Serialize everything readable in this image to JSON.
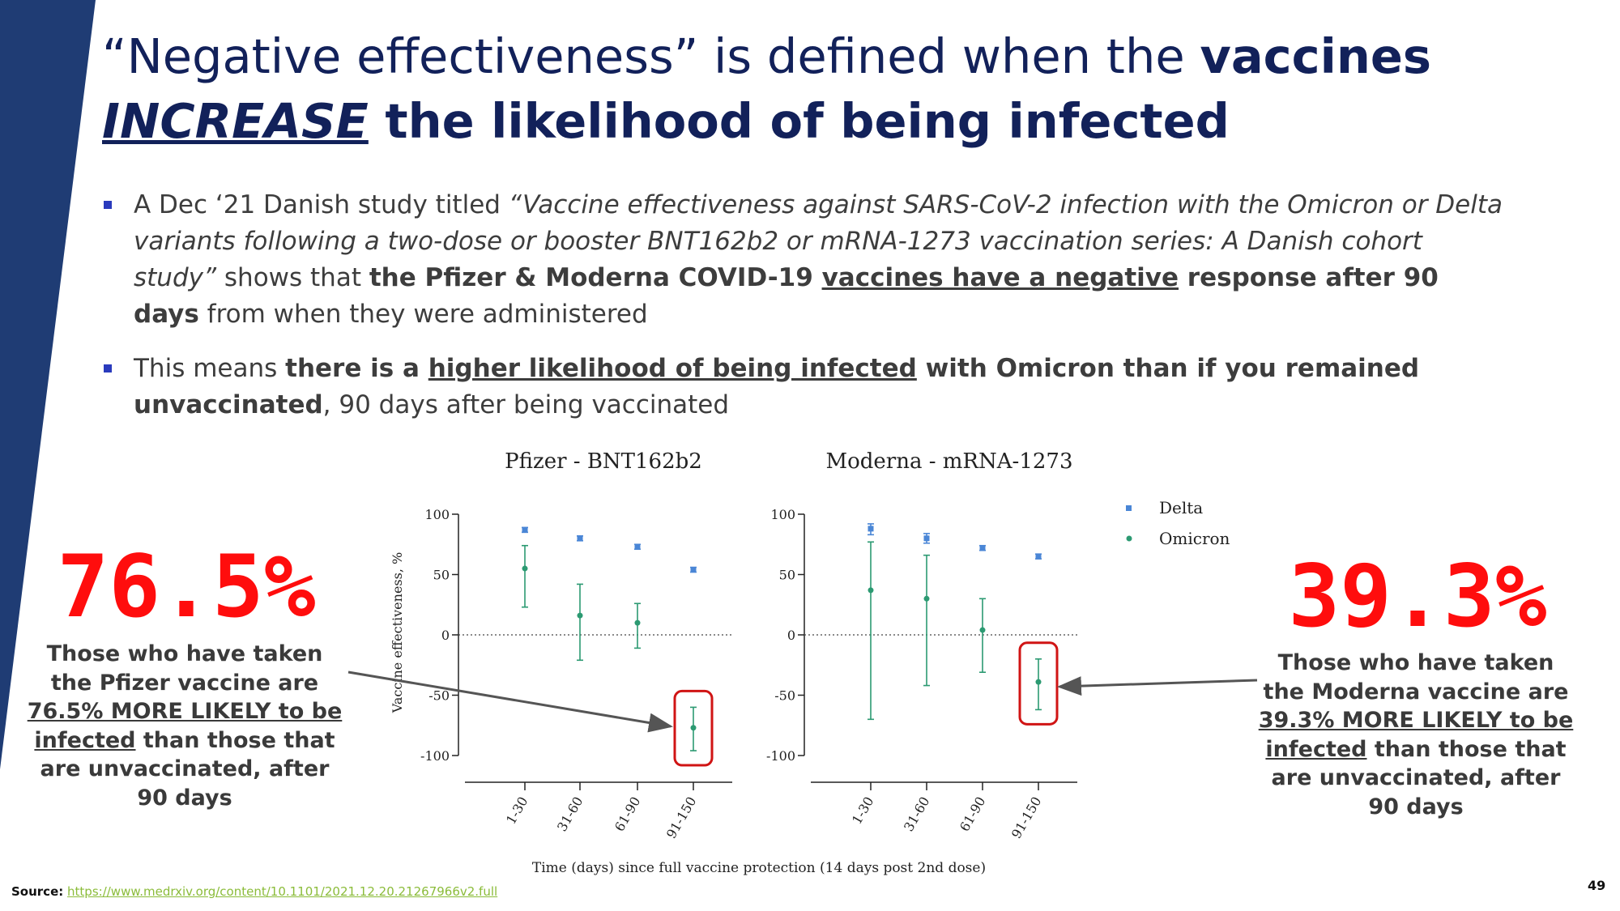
{
  "title": {
    "part1": "“Negative effectiveness” is defined when the ",
    "part1_bold": "vaccines",
    "part2_emph": "INCREASE",
    "part2_bold": " the likelihood of being infected"
  },
  "bullets": [
    {
      "t1": "A Dec ‘21 Danish study titled ",
      "t2_italic": "“Vaccine effectiveness against SARS-CoV-2 infection with the Omicron or Delta variants following a two-dose or booster BNT162b2 or mRNA-1273 vaccination series: A Danish cohort study”",
      "t3": " shows that ",
      "t4_bold": "the Pfizer & Moderna COVID-19 ",
      "t5_bold_underline": "vaccines have a negative",
      "t6_bold": " response after 90 days",
      "t7": " from when they were administered"
    },
    {
      "t1": "This means ",
      "t2_bold": "there is a ",
      "t3_bold_underline": "higher likelihood of being infected",
      "t4_bold": " with Omicron than if you remained unvaccinated",
      "t5": ", 90 days after being vaccinated"
    }
  ],
  "stat_left": {
    "value": "76.5%",
    "d1": "Those who have taken the Pfizer vaccine are ",
    "d2_underline": "76.5% MORE LIKELY to be infected",
    "d3": " than those that are unvaccinated, after 90 days"
  },
  "stat_right": {
    "value": "39.3%",
    "d1": "Those who have taken the Moderna vaccine are ",
    "d2_underline": "39.3% MORE LIKELY to be infected",
    "d3": " than those that are unvaccinated, after 90 days"
  },
  "source": {
    "label": "Source:",
    "url": "https://www.medrxiv.org/content/10.1101/2021.12.20.21267966v2.full"
  },
  "page_number": "49",
  "colors": {
    "title": "#12215a",
    "stripe": "#1f3c74",
    "accent_red": "#ff0d0d",
    "delta": "#4a86d6",
    "omicron": "#2c9a72",
    "bullet_marker": "#2a3bbd",
    "source_link": "#8bbc3a"
  },
  "chart_data": [
    {
      "type": "scatter",
      "title": "Pfizer - BNT162b2",
      "ylabel": "Vaccine effectiveness, %",
      "xlabel": "Time (days) since full vaccine protection (14 days post 2nd dose)",
      "categories": [
        "1-30",
        "31-60",
        "61-90",
        "91-150"
      ],
      "yticks": [
        100,
        50,
        0,
        -50,
        -100
      ],
      "ylim": [
        -100,
        100
      ],
      "series": [
        {
          "name": "Delta",
          "values": [
            87,
            80,
            73,
            54
          ],
          "lower": [
            85,
            78,
            71,
            52
          ],
          "upper": [
            89,
            82,
            75,
            56
          ]
        },
        {
          "name": "Omicron",
          "values": [
            55,
            16,
            10,
            -77
          ],
          "lower": [
            23,
            -21,
            -11,
            -96
          ],
          "upper": [
            74,
            42,
            26,
            -60
          ]
        }
      ],
      "highlight_category": "91-150"
    },
    {
      "type": "scatter",
      "title": "Moderna - mRNA-1273",
      "ylabel": "",
      "xlabel": "Time (days) since full vaccine protection (14 days post 2nd dose)",
      "categories": [
        "1-30",
        "31-60",
        "61-90",
        "91-150"
      ],
      "yticks": [
        100,
        50,
        0,
        -50,
        -100
      ],
      "ylim": [
        -100,
        100
      ],
      "series": [
        {
          "name": "Delta",
          "values": [
            88,
            80,
            72,
            65
          ],
          "lower": [
            83,
            76,
            70,
            63
          ],
          "upper": [
            92,
            84,
            74,
            67
          ]
        },
        {
          "name": "Omicron",
          "values": [
            37,
            30,
            4,
            -39
          ],
          "lower": [
            -70,
            -42,
            -31,
            -62
          ],
          "upper": [
            77,
            66,
            30,
            -20
          ]
        }
      ],
      "highlight_category": "91-150"
    }
  ],
  "legend": [
    "Delta",
    "Omicron"
  ]
}
